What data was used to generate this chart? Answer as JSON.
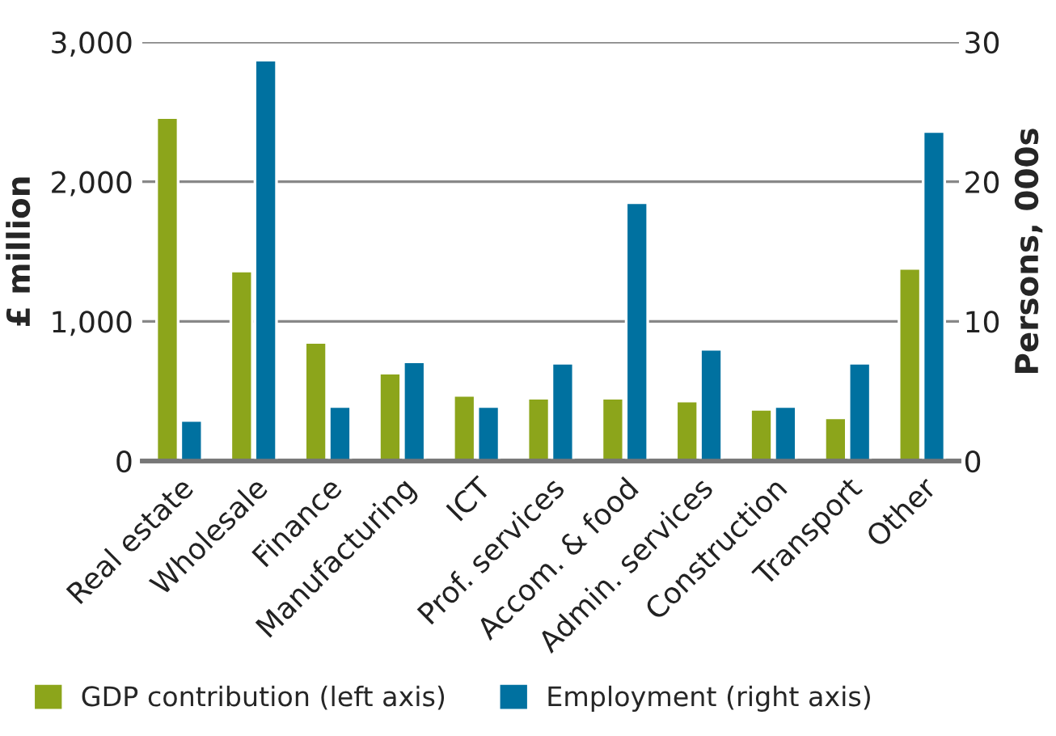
{
  "chart_data": {
    "type": "bar",
    "categories": [
      "Real estate",
      "Wholesale",
      "Finance",
      "Manufacturing",
      "ICT",
      "Prof. services",
      "Accom. & food",
      "Admin. services",
      "Construction",
      "Transport",
      "Other"
    ],
    "series": [
      {
        "name": "GDP contribution (left axis)",
        "color": "#8ca51b",
        "values": [
          2460,
          1360,
          850,
          630,
          470,
          450,
          450,
          430,
          370,
          310,
          1380
        ]
      },
      {
        "name": "Employment (right axis)",
        "color": "#0071a0",
        "axis": "y2",
        "values": [
          2.9,
          28.7,
          3.9,
          7.1,
          3.9,
          7.0,
          18.5,
          8.0,
          3.9,
          7.0,
          23.6
        ]
      }
    ],
    "ylabel": "£ million",
    "y2label": "Persons, 000s",
    "ylim": [
      0,
      3000
    ],
    "yticks": [
      0,
      {
        "value": 1000,
        "label": "1,000"
      },
      {
        "value": 2000,
        "label": "2,000"
      },
      {
        "value": 3000,
        "label": "3,000"
      }
    ],
    "y2lim": [
      0,
      30
    ],
    "y2ticks": [
      0,
      10,
      20,
      30
    ],
    "grid": "y",
    "legend": "bottom"
  }
}
